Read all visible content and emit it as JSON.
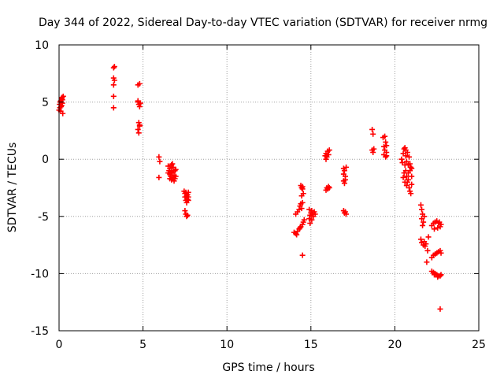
{
  "chart_data": {
    "type": "scatter",
    "title": "Day 344 of 2022, Sidereal Day-to-day VTEC variation (SDTVAR) for receiver nrmg",
    "xlabel": "GPS time / hours",
    "ylabel": "SDTVAR / TECUs",
    "xlim": [
      0,
      25
    ],
    "ylim": [
      -15,
      10
    ],
    "x_ticks": [
      0,
      5,
      10,
      15,
      20,
      25
    ],
    "x_tick_labels": [
      "0",
      "5",
      "10",
      "15",
      "20",
      "25"
    ],
    "y_ticks": [
      -15,
      -10,
      -5,
      0,
      5,
      10
    ],
    "y_tick_labels": [
      "-15",
      "-10",
      "-5",
      "0",
      "5",
      "10"
    ],
    "grid": true,
    "marker": "+",
    "color": "#ff0000",
    "series": [
      {
        "name": "nrmg",
        "points": [
          [
            0.0,
            4.3
          ],
          [
            0.03,
            4.8
          ],
          [
            0.06,
            5.0
          ],
          [
            0.1,
            5.1
          ],
          [
            0.12,
            4.6
          ],
          [
            0.15,
            5.3
          ],
          [
            0.18,
            5.4
          ],
          [
            0.2,
            4.9
          ],
          [
            0.22,
            4.0
          ],
          [
            0.25,
            5.5
          ],
          [
            0.1,
            4.2
          ],
          [
            0.05,
            4.5
          ],
          [
            0.2,
            5.2
          ],
          [
            0.15,
            4.7
          ],
          [
            3.25,
            8.0
          ],
          [
            3.25,
            7.1
          ],
          [
            3.25,
            6.5
          ],
          [
            3.25,
            5.5
          ],
          [
            3.25,
            4.5
          ],
          [
            3.3,
            8.1
          ],
          [
            3.3,
            6.9
          ],
          [
            4.7,
            6.5
          ],
          [
            4.8,
            6.6
          ],
          [
            4.7,
            5.0
          ],
          [
            4.75,
            4.8
          ],
          [
            4.8,
            4.6
          ],
          [
            4.85,
            4.9
          ],
          [
            4.7,
            5.1
          ],
          [
            4.75,
            3.2
          ],
          [
            4.8,
            3.0
          ],
          [
            4.7,
            2.6
          ],
          [
            4.75,
            2.3
          ],
          [
            4.8,
            2.9
          ],
          [
            5.95,
            0.2
          ],
          [
            6.0,
            -0.2
          ],
          [
            5.95,
            -1.6
          ],
          [
            6.5,
            -0.6
          ],
          [
            6.55,
            -1.0
          ],
          [
            6.6,
            -1.3
          ],
          [
            6.6,
            -0.8
          ],
          [
            6.65,
            -1.5
          ],
          [
            6.7,
            -1.1
          ],
          [
            6.7,
            -1.8
          ],
          [
            6.75,
            -0.4
          ],
          [
            6.75,
            -1.2
          ],
          [
            6.8,
            -1.6
          ],
          [
            6.8,
            -0.7
          ],
          [
            6.85,
            -1.4
          ],
          [
            6.85,
            -1.9
          ],
          [
            6.9,
            -1.0
          ],
          [
            6.9,
            -1.7
          ],
          [
            6.95,
            -1.5
          ],
          [
            6.95,
            -0.9
          ],
          [
            6.7,
            -0.5
          ],
          [
            6.6,
            -1.7
          ],
          [
            6.5,
            -1.2
          ],
          [
            7.45,
            -2.8
          ],
          [
            7.5,
            -3.0
          ],
          [
            7.5,
            -3.3
          ],
          [
            7.55,
            -2.9
          ],
          [
            7.55,
            -3.6
          ],
          [
            7.6,
            -3.2
          ],
          [
            7.6,
            -3.8
          ],
          [
            7.65,
            -3.1
          ],
          [
            7.65,
            -3.5
          ],
          [
            7.7,
            -2.9
          ],
          [
            7.7,
            -3.3
          ],
          [
            7.5,
            -4.5
          ],
          [
            7.55,
            -4.8
          ],
          [
            7.6,
            -5.0
          ],
          [
            7.65,
            -4.9
          ],
          [
            7.7,
            -3.6
          ],
          [
            14.1,
            -4.8
          ],
          [
            14.2,
            -4.6
          ],
          [
            14.3,
            -4.4
          ],
          [
            14.35,
            -4.1
          ],
          [
            14.4,
            -3.9
          ],
          [
            14.45,
            -4.3
          ],
          [
            14.5,
            -3.8
          ],
          [
            14.4,
            -2.3
          ],
          [
            14.45,
            -2.5
          ],
          [
            14.5,
            -2.6
          ],
          [
            14.55,
            -3.0
          ],
          [
            14.45,
            -3.2
          ],
          [
            14.5,
            -2.4
          ],
          [
            14.0,
            -6.4
          ],
          [
            14.1,
            -6.5
          ],
          [
            14.2,
            -6.3
          ],
          [
            14.3,
            -6.1
          ],
          [
            14.4,
            -5.9
          ],
          [
            14.5,
            -5.7
          ],
          [
            14.55,
            -5.5
          ],
          [
            14.6,
            -5.3
          ],
          [
            14.15,
            -6.6
          ],
          [
            14.35,
            -6.0
          ],
          [
            14.5,
            -8.4
          ],
          [
            14.9,
            -5.2
          ],
          [
            14.95,
            -4.9
          ],
          [
            15.0,
            -4.7
          ],
          [
            15.05,
            -4.5
          ],
          [
            15.1,
            -4.8
          ],
          [
            15.15,
            -5.0
          ],
          [
            15.2,
            -4.6
          ],
          [
            15.25,
            -4.8
          ],
          [
            14.95,
            -5.6
          ],
          [
            15.05,
            -5.3
          ],
          [
            14.9,
            -4.4
          ],
          [
            15.85,
            0.3
          ],
          [
            15.9,
            0.5
          ],
          [
            15.95,
            0.2
          ],
          [
            16.0,
            0.7
          ],
          [
            16.05,
            0.4
          ],
          [
            16.1,
            0.8
          ],
          [
            15.9,
            0.0
          ],
          [
            15.9,
            -2.7
          ],
          [
            15.95,
            -2.5
          ],
          [
            16.0,
            -2.6
          ],
          [
            16.05,
            -2.4
          ],
          [
            16.1,
            -2.5
          ],
          [
            16.95,
            -0.8
          ],
          [
            17.0,
            -1.0
          ],
          [
            17.05,
            -1.5
          ],
          [
            16.95,
            -1.9
          ],
          [
            17.0,
            -2.1
          ],
          [
            17.05,
            -1.8
          ],
          [
            17.1,
            -0.7
          ],
          [
            16.95,
            -1.3
          ],
          [
            16.95,
            -4.5
          ],
          [
            17.0,
            -4.7
          ],
          [
            17.05,
            -4.6
          ],
          [
            17.1,
            -4.8
          ],
          [
            18.65,
            2.6
          ],
          [
            18.7,
            2.2
          ],
          [
            18.65,
            0.8
          ],
          [
            18.7,
            0.6
          ],
          [
            18.75,
            0.9
          ],
          [
            19.3,
            1.9
          ],
          [
            19.4,
            2.0
          ],
          [
            19.45,
            1.5
          ],
          [
            19.5,
            1.2
          ],
          [
            19.35,
            1.1
          ],
          [
            19.4,
            0.8
          ],
          [
            19.5,
            0.6
          ],
          [
            19.45,
            0.2
          ],
          [
            19.35,
            0.4
          ],
          [
            19.5,
            0.3
          ],
          [
            20.4,
            0.0
          ],
          [
            20.45,
            -0.3
          ],
          [
            20.5,
            0.5
          ],
          [
            20.55,
            0.9
          ],
          [
            20.6,
            1.0
          ],
          [
            20.6,
            -0.5
          ],
          [
            20.65,
            0.3
          ],
          [
            20.65,
            -1.0
          ],
          [
            20.7,
            -0.2
          ],
          [
            20.7,
            -1.5
          ],
          [
            20.75,
            0.6
          ],
          [
            20.75,
            -2.0
          ],
          [
            20.8,
            -0.5
          ],
          [
            20.8,
            -1.8
          ],
          [
            20.85,
            0.2
          ],
          [
            20.85,
            -2.5
          ],
          [
            20.9,
            -1.0
          ],
          [
            20.9,
            -2.8
          ],
          [
            20.95,
            -0.7
          ],
          [
            20.95,
            -3.0
          ],
          [
            21.0,
            -1.5
          ],
          [
            21.0,
            -2.2
          ],
          [
            20.55,
            -1.2
          ],
          [
            20.6,
            -2.0
          ],
          [
            20.5,
            -1.6
          ],
          [
            20.7,
            -2.3
          ],
          [
            20.8,
            -1.2
          ],
          [
            20.9,
            -0.4
          ],
          [
            21.0,
            -0.8
          ],
          [
            20.65,
            0.8
          ],
          [
            21.55,
            -4.0
          ],
          [
            21.6,
            -4.4
          ],
          [
            21.65,
            -4.8
          ],
          [
            21.6,
            -5.2
          ],
          [
            21.7,
            -5.5
          ],
          [
            21.75,
            -5.0
          ],
          [
            21.65,
            -5.8
          ],
          [
            21.55,
            -7.0
          ],
          [
            21.6,
            -7.3
          ],
          [
            21.7,
            -7.5
          ],
          [
            21.75,
            -7.2
          ],
          [
            21.8,
            -7.6
          ],
          [
            21.85,
            -7.4
          ],
          [
            21.9,
            -9.0
          ],
          [
            21.95,
            -8.0
          ],
          [
            22.0,
            -6.8
          ],
          [
            22.2,
            -5.8
          ],
          [
            22.3,
            -5.6
          ],
          [
            22.4,
            -5.5
          ],
          [
            22.5,
            -5.4
          ],
          [
            22.6,
            -5.6
          ],
          [
            22.7,
            -5.9
          ],
          [
            22.75,
            -5.7
          ],
          [
            22.35,
            -6.1
          ],
          [
            22.55,
            -6.0
          ],
          [
            22.65,
            -5.5
          ],
          [
            22.2,
            -8.6
          ],
          [
            22.3,
            -8.4
          ],
          [
            22.4,
            -8.3
          ],
          [
            22.5,
            -8.2
          ],
          [
            22.6,
            -8.1
          ],
          [
            22.7,
            -8.0
          ],
          [
            22.75,
            -8.2
          ],
          [
            22.2,
            -9.8
          ],
          [
            22.3,
            -9.9
          ],
          [
            22.4,
            -10.0
          ],
          [
            22.5,
            -10.1
          ],
          [
            22.6,
            -10.2
          ],
          [
            22.7,
            -10.2
          ],
          [
            22.75,
            -10.1
          ],
          [
            22.35,
            -10.1
          ],
          [
            22.55,
            -10.3
          ],
          [
            22.7,
            -13.1
          ]
        ]
      }
    ]
  }
}
